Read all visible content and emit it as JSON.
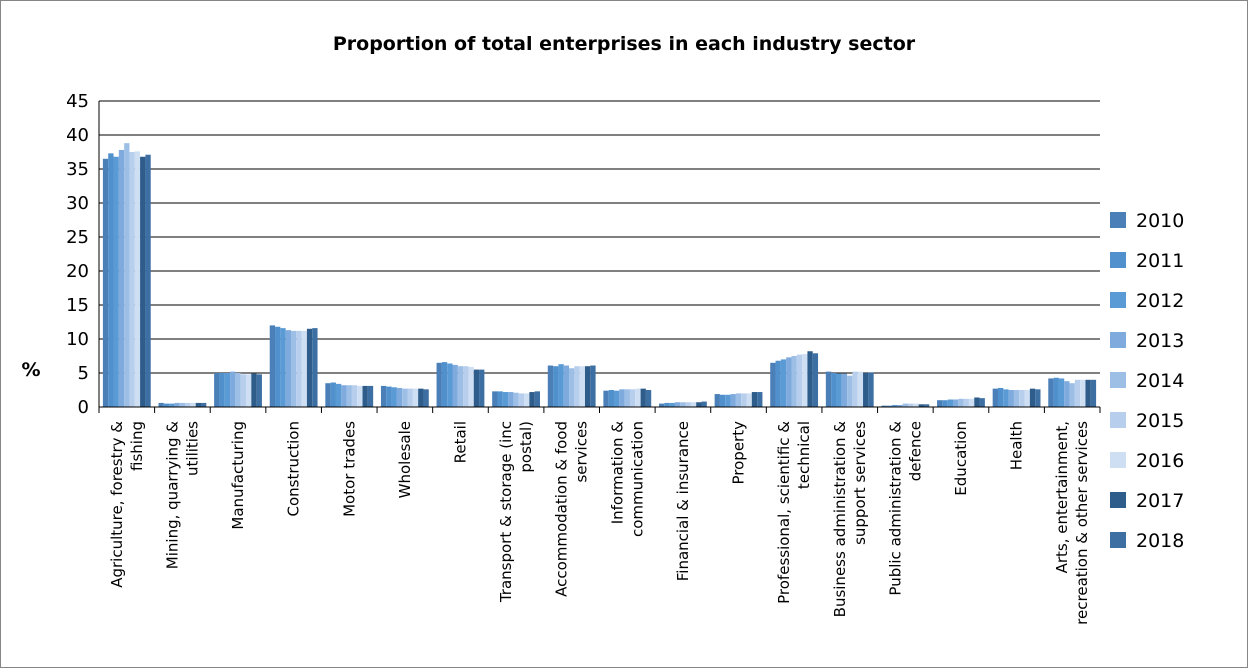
{
  "chart_data": {
    "type": "bar",
    "title": "Proportion of total enterprises in each industry sector",
    "ylabel": "%",
    "xlabel": "",
    "ylim": [
      0,
      45
    ],
    "yticks": [
      0,
      5,
      10,
      15,
      20,
      25,
      30,
      35,
      40,
      45
    ],
    "grid": true,
    "legend_position": "right",
    "categories": [
      [
        "Agriculture, forestry &",
        "fishing"
      ],
      [
        "Mining, quarrying &",
        "utilities"
      ],
      [
        "Manufacturing"
      ],
      [
        "Construction"
      ],
      [
        "Motor trades"
      ],
      [
        "Wholesale"
      ],
      [
        "Retail"
      ],
      [
        "Transport & storage (inc",
        "postal)"
      ],
      [
        "Accommodation & food",
        "services"
      ],
      [
        "Information &",
        "communication"
      ],
      [
        "Financial & insurance"
      ],
      [
        "Property"
      ],
      [
        "Professional, scientific &",
        "technical"
      ],
      [
        "Business administration &",
        "support services"
      ],
      [
        "Public administration &",
        "defence"
      ],
      [
        "Education"
      ],
      [
        "Health"
      ],
      [
        "Arts, entertainment,",
        "recreation & other services"
      ]
    ],
    "series": [
      {
        "name": "2010",
        "color": "#4a7fb8",
        "values": [
          36.5,
          0.6,
          5.0,
          12.0,
          3.5,
          3.1,
          6.5,
          2.3,
          6.1,
          2.4,
          0.5,
          1.9,
          6.5,
          5.2,
          0.2,
          1.0,
          2.7,
          4.2
        ]
      },
      {
        "name": "2011",
        "color": "#5090cc",
        "values": [
          37.3,
          0.5,
          5.0,
          11.8,
          3.6,
          3.0,
          6.6,
          2.3,
          6.0,
          2.5,
          0.6,
          1.8,
          6.8,
          5.0,
          0.2,
          1.0,
          2.8,
          4.3
        ]
      },
      {
        "name": "2012",
        "color": "#5b9bd5",
        "values": [
          36.8,
          0.5,
          5.0,
          11.6,
          3.4,
          2.9,
          6.4,
          2.2,
          6.3,
          2.4,
          0.6,
          1.8,
          7.0,
          4.9,
          0.3,
          1.1,
          2.6,
          4.2
        ]
      },
      {
        "name": "2013",
        "color": "#7eaade",
        "values": [
          37.8,
          0.6,
          5.2,
          11.3,
          3.2,
          2.8,
          6.2,
          2.2,
          6.1,
          2.6,
          0.7,
          1.9,
          7.3,
          4.9,
          0.3,
          1.1,
          2.5,
          3.8
        ]
      },
      {
        "name": "2014",
        "color": "#9dbfe6",
        "values": [
          38.8,
          0.6,
          5.0,
          11.2,
          3.2,
          2.7,
          6.0,
          2.1,
          5.7,
          2.6,
          0.7,
          2.0,
          7.5,
          4.6,
          0.5,
          1.2,
          2.5,
          3.5
        ]
      },
      {
        "name": "2015",
        "color": "#b7cfed",
        "values": [
          37.5,
          0.6,
          4.8,
          11.2,
          3.2,
          2.7,
          6.0,
          2.0,
          6.0,
          2.6,
          0.7,
          2.0,
          7.7,
          5.2,
          0.5,
          1.2,
          2.5,
          4.0
        ]
      },
      {
        "name": "2016",
        "color": "#cfdff3",
        "values": [
          37.6,
          0.6,
          4.8,
          11.2,
          3.1,
          2.7,
          5.9,
          2.0,
          6.0,
          2.7,
          0.7,
          2.0,
          7.8,
          5.2,
          0.5,
          1.2,
          2.5,
          4.0
        ]
      },
      {
        "name": "2017",
        "color": "#2e5d8c",
        "values": [
          36.8,
          0.6,
          4.9,
          11.5,
          3.1,
          2.7,
          5.5,
          2.2,
          6.0,
          2.7,
          0.7,
          2.2,
          8.2,
          5.0,
          0.4,
          1.4,
          2.7,
          4.0
        ]
      },
      {
        "name": "2018",
        "color": "#3d6fa3",
        "values": [
          37.1,
          0.6,
          4.8,
          11.6,
          3.1,
          2.6,
          5.5,
          2.3,
          6.1,
          2.5,
          0.8,
          2.2,
          7.9,
          5.1,
          0.4,
          1.3,
          2.6,
          4.0
        ]
      }
    ]
  }
}
